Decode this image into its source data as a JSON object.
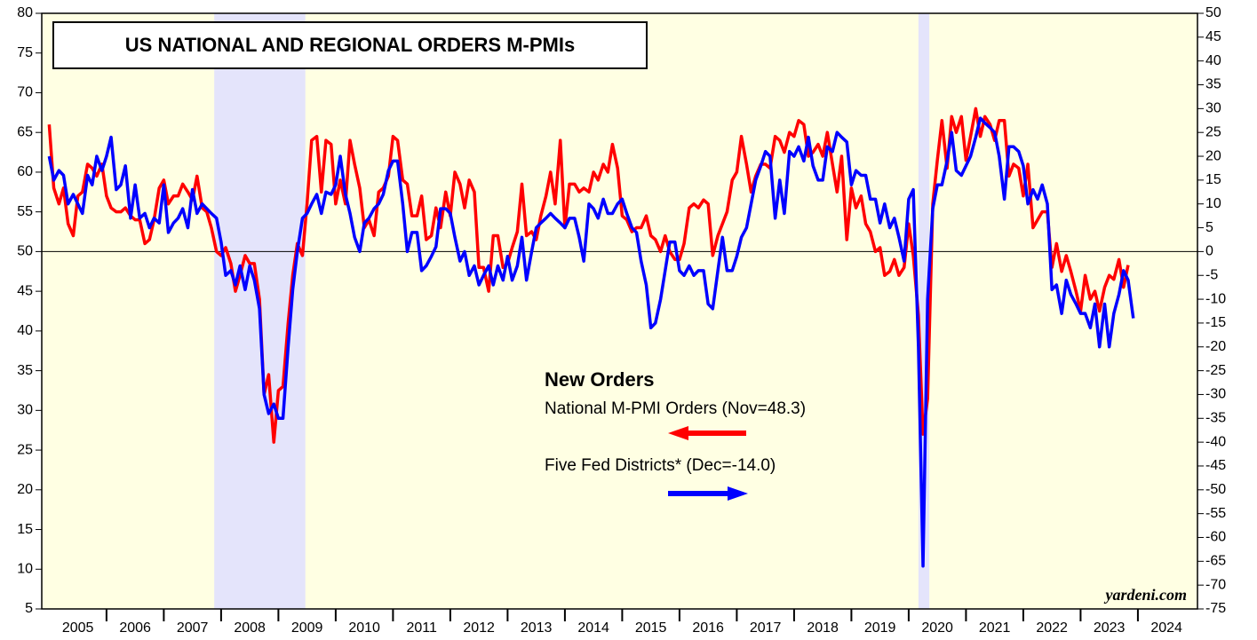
{
  "chart_data": {
    "type": "line",
    "title": "US NATIONAL AND REGIONAL ORDERS M-PMIs",
    "legend_title": "New Orders",
    "source": "yardeni.com",
    "x": [
      2005,
      2005.08,
      2005.17,
      2005.25,
      2005.33,
      2005.42,
      2005.5,
      2005.58,
      2005.67,
      2005.75,
      2005.83,
      2005.92,
      2006,
      2006.08,
      2006.17,
      2006.25,
      2006.33,
      2006.42,
      2006.5,
      2006.58,
      2006.67,
      2006.75,
      2006.83,
      2006.92,
      2007,
      2007.08,
      2007.17,
      2007.25,
      2007.33,
      2007.42,
      2007.5,
      2007.58,
      2007.67,
      2007.75,
      2007.83,
      2007.92,
      2008,
      2008.08,
      2008.17,
      2008.25,
      2008.33,
      2008.42,
      2008.5,
      2008.58,
      2008.67,
      2008.75,
      2008.83,
      2008.92,
      2009,
      2009.08,
      2009.17,
      2009.25,
      2009.33,
      2009.42,
      2009.5,
      2009.58,
      2009.67,
      2009.75,
      2009.83,
      2009.92,
      2010,
      2010.08,
      2010.17,
      2010.25,
      2010.33,
      2010.42,
      2010.5,
      2010.58,
      2010.67,
      2010.75,
      2010.83,
      2010.92,
      2011,
      2011.08,
      2011.17,
      2011.25,
      2011.33,
      2011.42,
      2011.5,
      2011.58,
      2011.67,
      2011.75,
      2011.83,
      2011.92,
      2012,
      2012.08,
      2012.17,
      2012.25,
      2012.33,
      2012.42,
      2012.5,
      2012.58,
      2012.67,
      2012.75,
      2012.83,
      2012.92,
      2013,
      2013.08,
      2013.17,
      2013.25,
      2013.33,
      2013.42,
      2013.5,
      2013.58,
      2013.67,
      2013.75,
      2013.83,
      2013.92,
      2014,
      2014.08,
      2014.17,
      2014.25,
      2014.33,
      2014.42,
      2014.5,
      2014.58,
      2014.67,
      2014.75,
      2014.83,
      2014.92,
      2015,
      2015.08,
      2015.17,
      2015.25,
      2015.33,
      2015.42,
      2015.5,
      2015.58,
      2015.67,
      2015.75,
      2015.83,
      2015.92,
      2016,
      2016.08,
      2016.17,
      2016.25,
      2016.33,
      2016.42,
      2016.5,
      2016.58,
      2016.67,
      2016.75,
      2016.83,
      2016.92,
      2017,
      2017.08,
      2017.17,
      2017.25,
      2017.33,
      2017.42,
      2017.5,
      2017.58,
      2017.67,
      2017.75,
      2017.83,
      2017.92,
      2018,
      2018.08,
      2018.17,
      2018.25,
      2018.33,
      2018.42,
      2018.5,
      2018.58,
      2018.67,
      2018.75,
      2018.83,
      2018.92,
      2019,
      2019.08,
      2019.17,
      2019.25,
      2019.33,
      2019.42,
      2019.5,
      2019.58,
      2019.67,
      2019.75,
      2019.83,
      2019.92,
      2020,
      2020.08,
      2020.17,
      2020.25,
      2020.33,
      2020.42,
      2020.5,
      2020.58,
      2020.67,
      2020.75,
      2020.83,
      2020.92,
      2021,
      2021.08,
      2021.17,
      2021.25,
      2021.33,
      2021.42,
      2021.5,
      2021.58,
      2021.67,
      2021.75,
      2021.83,
      2021.92,
      2022,
      2022.08,
      2022.17,
      2022.25,
      2022.33,
      2022.42,
      2022.5,
      2022.58,
      2022.67,
      2022.75,
      2022.83,
      2022.92,
      2023,
      2023.08,
      2023.17,
      2023.25,
      2023.33,
      2023.42,
      2023.5,
      2023.58,
      2023.67,
      2023.75,
      2023.83,
      2023.92
    ],
    "series": [
      {
        "name": "National M-PMI Orders (Nov=48.3)",
        "color": "#ff0000",
        "axis": "y",
        "values": [
          66,
          58,
          56,
          58,
          53.5,
          52,
          57,
          57.5,
          61,
          60.5,
          59.5,
          61,
          57,
          55.5,
          55,
          55,
          55.5,
          54.5,
          54,
          54,
          51,
          51.5,
          54,
          58,
          59,
          56,
          57,
          57,
          58.5,
          57.5,
          56.5,
          59.5,
          55.5,
          55,
          53,
          50,
          49.5,
          50.5,
          48.5,
          45,
          47,
          49.5,
          48.5,
          48.5,
          44,
          32,
          34.5,
          26,
          32.5,
          33,
          41,
          47,
          51,
          49.5,
          56,
          64,
          64.5,
          57.5,
          64,
          63.5,
          56,
          59,
          56,
          64,
          61,
          58,
          53,
          54,
          52,
          57.5,
          58,
          59.5,
          64.5,
          64,
          59,
          58.5,
          54.5,
          54.5,
          57,
          51.5,
          52,
          55.5,
          53,
          57.5,
          54.5,
          60,
          58.5,
          55.5,
          59,
          57.5,
          48,
          48,
          45,
          52,
          52,
          48,
          48.5,
          50.5,
          52.5,
          58.5,
          52,
          52.5,
          51.5,
          54.5,
          57,
          60,
          56,
          64,
          53,
          58.5,
          58.5,
          57.5,
          58,
          57.5,
          60,
          59,
          61,
          60,
          63.5,
          60.5,
          54.5,
          54,
          52.5,
          53,
          53,
          54.5,
          52,
          51.5,
          50,
          52,
          50,
          49,
          49,
          51,
          55.5,
          56,
          55.5,
          56.5,
          56,
          49.5,
          52,
          53.5,
          55,
          59,
          60,
          64.5,
          61,
          57.5,
          59.5,
          61,
          61,
          60.5,
          64.5,
          64,
          62.5,
          65,
          64.5,
          66.5,
          66,
          62,
          62.5,
          63.5,
          62,
          65,
          61,
          57.5,
          62,
          51.5,
          58,
          55.5,
          57,
          53.5,
          52.5,
          50,
          50.5,
          47,
          47.5,
          49,
          47,
          48,
          53.5,
          49.5,
          42,
          27,
          31.5,
          56,
          61.5,
          66.5,
          60.5,
          67,
          65,
          67,
          61.5,
          64.5,
          68,
          64.5,
          67,
          66,
          64,
          66.5,
          66.5,
          59.5,
          61,
          60.5,
          57,
          61,
          53,
          54,
          55,
          55,
          48,
          51,
          47.5,
          49.5,
          47.5,
          45,
          42.5,
          47,
          44,
          45,
          42.5,
          45.5,
          47,
          46.5,
          49,
          45.5,
          48.3,
          null
        ]
      },
      {
        "name": "Five Fed Districts* (Dec=-14.0)",
        "color": "#0000ff",
        "axis": "y2",
        "values": [
          20,
          15,
          17,
          16,
          10,
          12,
          10,
          8,
          16,
          14,
          20,
          17,
          20,
          24,
          13,
          14,
          18,
          7,
          14,
          7,
          8,
          5,
          7,
          6,
          14,
          4,
          6,
          7,
          9,
          5,
          13,
          8,
          10,
          9,
          8,
          7,
          2,
          -5,
          -4,
          -7,
          -3,
          -8,
          -3,
          -6,
          -12,
          -30,
          -34,
          -32,
          -35,
          -35,
          -20,
          -8,
          0,
          7,
          8,
          10,
          12,
          8,
          12.5,
          12,
          14,
          20,
          12,
          8,
          3,
          0,
          6,
          7,
          9,
          10,
          12,
          17,
          19,
          19,
          10,
          0,
          4,
          4,
          -4,
          -3,
          -1,
          1,
          9,
          9,
          8,
          3,
          -2,
          0,
          -5,
          -3,
          -7,
          -5,
          -3,
          -7,
          -3,
          -6,
          -1,
          -6,
          -3,
          3,
          -6,
          0,
          5,
          6,
          7,
          8,
          7,
          6,
          5,
          7,
          7,
          3,
          -2,
          10,
          9,
          7,
          11,
          8,
          8,
          10,
          11,
          8,
          5,
          4,
          -2,
          -7,
          -16,
          -15,
          -10,
          -4,
          2,
          2,
          -4,
          -5,
          -3,
          -5,
          -4,
          -4,
          -11,
          -12,
          -4,
          3,
          -4,
          -4,
          -1,
          3,
          5,
          10,
          15,
          18,
          21,
          20,
          7,
          15,
          8,
          21,
          20,
          22,
          19,
          24,
          18,
          15,
          15,
          22,
          21,
          25,
          24,
          23,
          14,
          17,
          16,
          16,
          11,
          11,
          6,
          10,
          5,
          7,
          3,
          -2,
          11,
          13,
          -20,
          -66,
          -10,
          9,
          14,
          14,
          19,
          25,
          17,
          16,
          18,
          20,
          24,
          28,
          27,
          26,
          25,
          20,
          11,
          22,
          22,
          21,
          18,
          10,
          13,
          11,
          14,
          10,
          -8,
          -7,
          -13,
          -6,
          -9,
          -11,
          -13,
          -13,
          -16,
          -11,
          -20,
          -11,
          -20,
          -13,
          -9,
          -4,
          -6,
          -14
        ]
      }
    ],
    "recessions": [
      [
        2007.88,
        2009.47
      ],
      [
        2020.17,
        2020.36
      ]
    ],
    "xlim": [
      2004.87,
      2025.04
    ],
    "xticks": [
      2005,
      2006,
      2007,
      2008,
      2009,
      2010,
      2011,
      2012,
      2013,
      2014,
      2015,
      2016,
      2017,
      2018,
      2019,
      2020,
      2021,
      2022,
      2023,
      2024
    ],
    "ylim": [
      5,
      80
    ],
    "yticks": [
      5,
      10,
      15,
      20,
      25,
      30,
      35,
      40,
      45,
      50,
      55,
      60,
      65,
      70,
      75,
      80
    ],
    "y2lim": [
      -75,
      50
    ],
    "y2ticks": [
      -75,
      -70,
      -65,
      -60,
      -55,
      -50,
      -45,
      -40,
      -35,
      -30,
      -25,
      -20,
      -15,
      -10,
      -5,
      0,
      5,
      10,
      15,
      20,
      25,
      30,
      35,
      40,
      45,
      50
    ],
    "zero_line": true
  }
}
